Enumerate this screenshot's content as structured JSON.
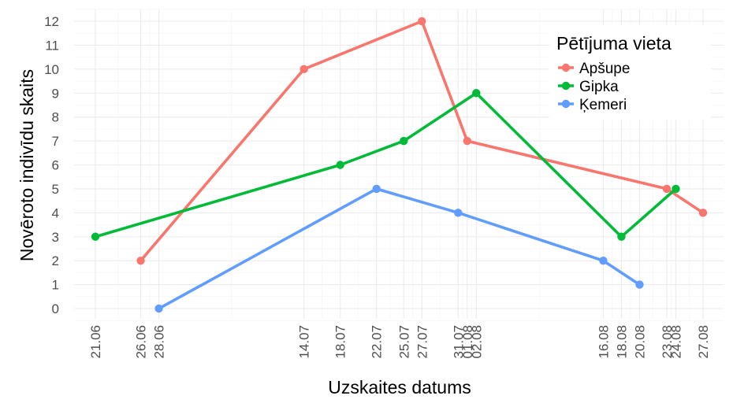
{
  "chart_data": {
    "type": "line",
    "xlabel": "Uzskaites datums",
    "ylabel": "Novēroto indivīdu skaits",
    "ylim": [
      0,
      12
    ],
    "xlim": [
      "2021-06-21",
      "2021-08-27"
    ],
    "grid": true,
    "x_ticks": [
      "21.06",
      "26.06",
      "28.06",
      "14.07",
      "18.07",
      "22.07",
      "25.07",
      "27.07",
      "31.07",
      "01.08",
      "02.08",
      "16.08",
      "18.08",
      "20.08",
      "23.08",
      "24.08",
      "27.08"
    ],
    "x_tick_dates": [
      "2021-06-21",
      "2021-06-26",
      "2021-06-28",
      "2021-07-14",
      "2021-07-18",
      "2021-07-22",
      "2021-07-25",
      "2021-07-27",
      "2021-07-31",
      "2021-08-01",
      "2021-08-02",
      "2021-08-16",
      "2021-08-18",
      "2021-08-20",
      "2021-08-23",
      "2021-08-24",
      "2021-08-27"
    ],
    "y_ticks": [
      0,
      1,
      2,
      3,
      4,
      5,
      6,
      7,
      8,
      9,
      10,
      11,
      12
    ],
    "legend": {
      "title": "Pētījuma vieta",
      "position": "top-right"
    },
    "series": [
      {
        "name": "Apšupe",
        "color": "#F8766D",
        "points": [
          {
            "x": "2021-06-26",
            "y": 2
          },
          {
            "x": "2021-07-14",
            "y": 10
          },
          {
            "x": "2021-07-27",
            "y": 12
          },
          {
            "x": "2021-08-01",
            "y": 7
          },
          {
            "x": "2021-08-23",
            "y": 5
          },
          {
            "x": "2021-08-27",
            "y": 4
          }
        ]
      },
      {
        "name": "Gipka",
        "color": "#00BA38",
        "points": [
          {
            "x": "2021-06-21",
            "y": 3
          },
          {
            "x": "2021-07-18",
            "y": 6
          },
          {
            "x": "2021-07-25",
            "y": 7
          },
          {
            "x": "2021-08-02",
            "y": 9
          },
          {
            "x": "2021-08-18",
            "y": 3
          },
          {
            "x": "2021-08-24",
            "y": 5
          }
        ]
      },
      {
        "name": "Ķemeri",
        "color": "#619CFF",
        "points": [
          {
            "x": "2021-06-28",
            "y": 0
          },
          {
            "x": "2021-07-22",
            "y": 5
          },
          {
            "x": "2021-07-31",
            "y": 4
          },
          {
            "x": "2021-08-16",
            "y": 2
          },
          {
            "x": "2021-08-20",
            "y": 1
          }
        ]
      }
    ]
  }
}
